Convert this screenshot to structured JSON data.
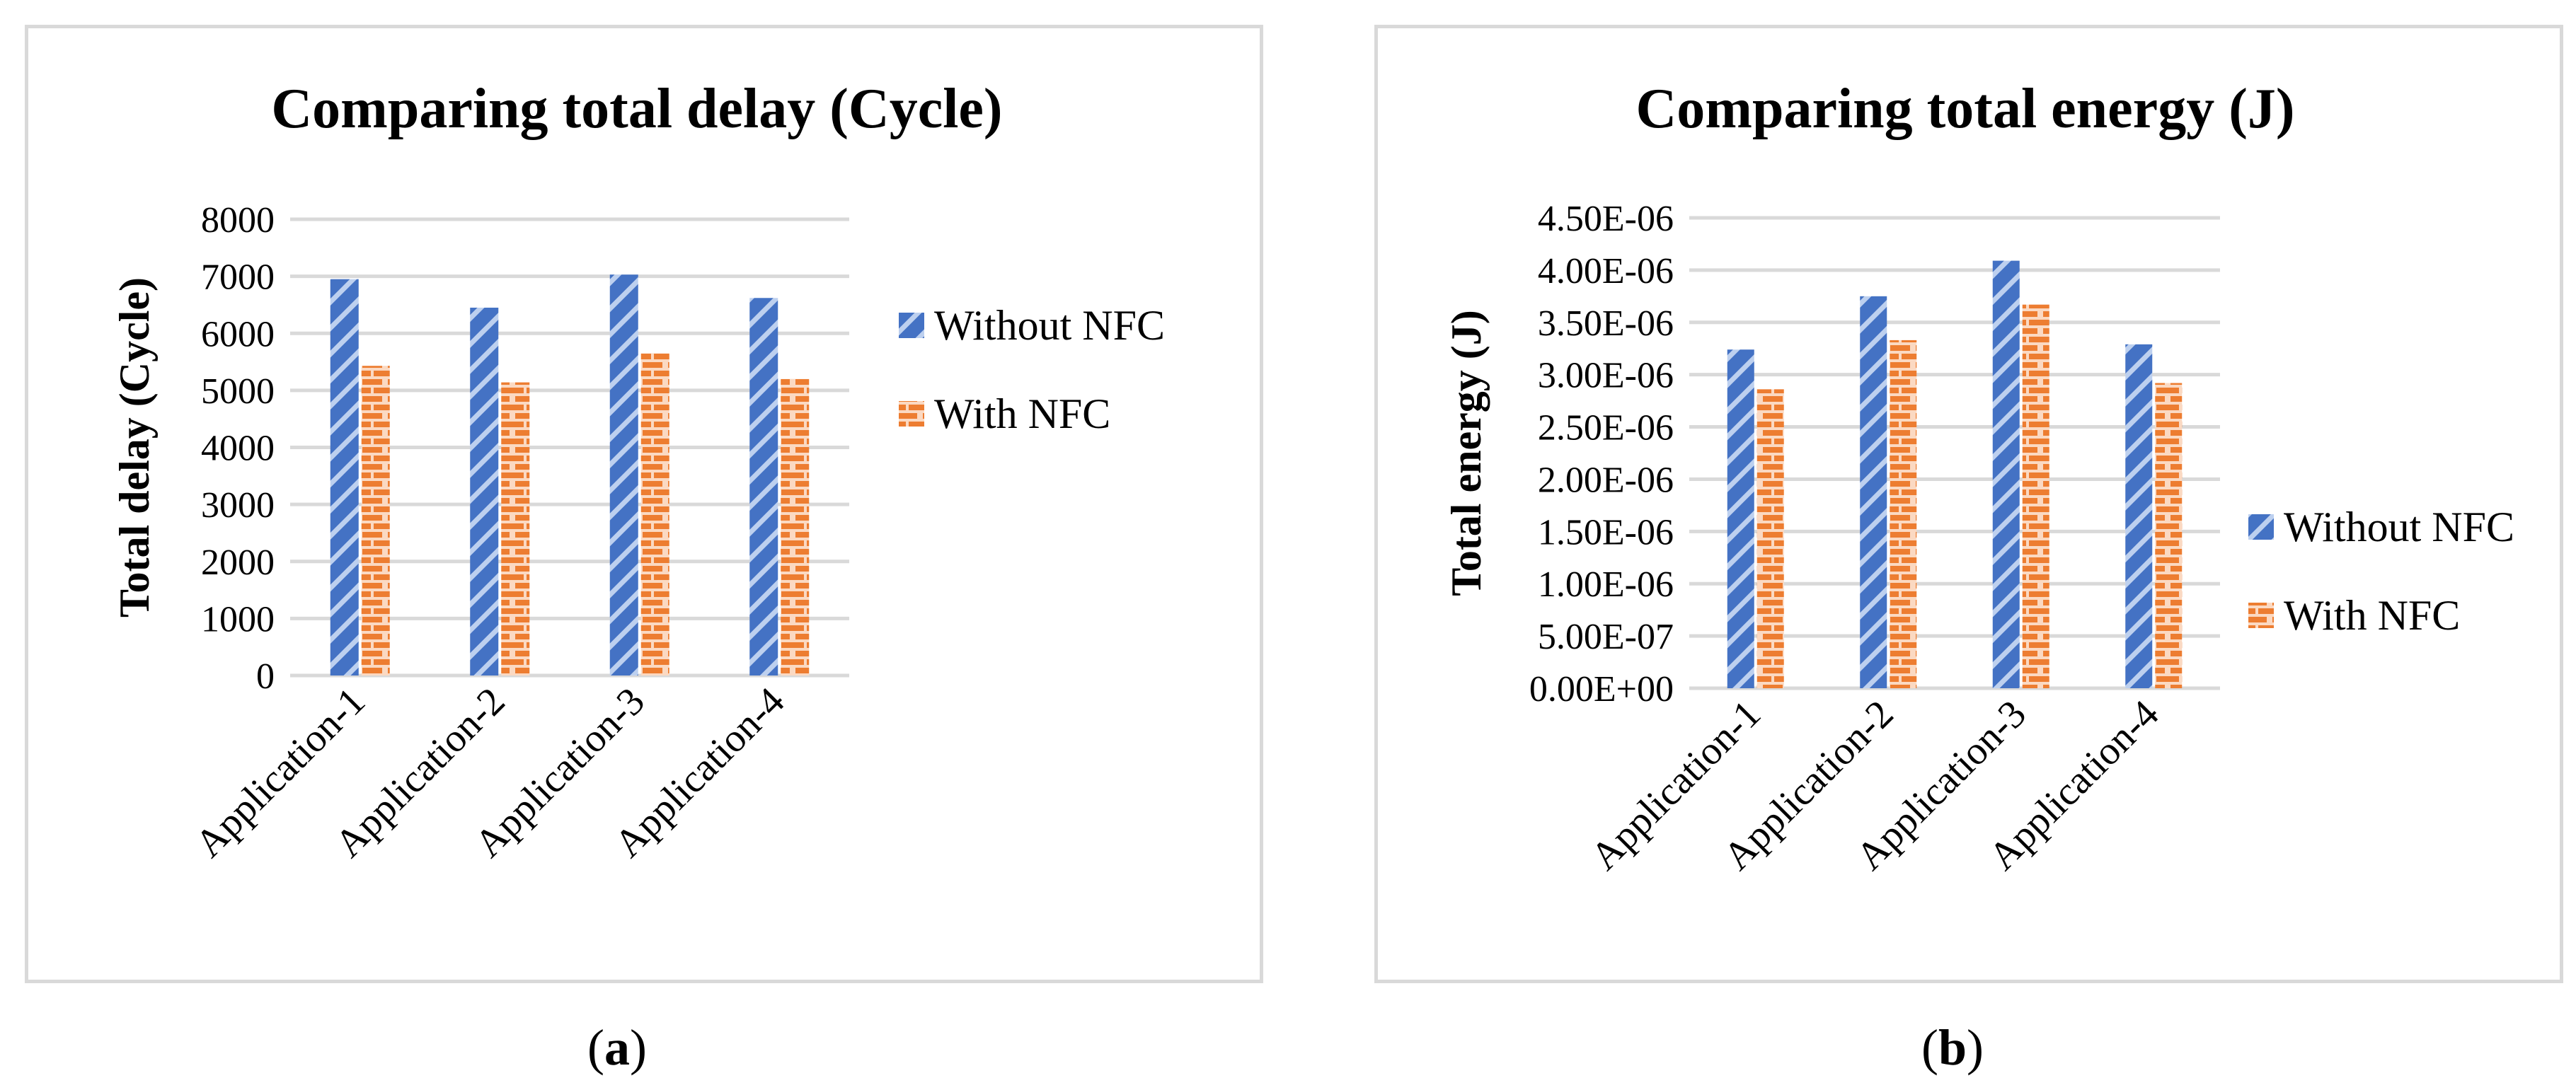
{
  "colors": {
    "without": "#4472c4",
    "with": "#ed7d31",
    "grid": "#d9d9d9"
  },
  "panels": {
    "a": "a",
    "b": "b"
  },
  "chart_data": [
    {
      "type": "bar",
      "title": "Comparing total delay (Cycle)",
      "xlabel": "",
      "ylabel": "Total delay (Cycle)",
      "categories": [
        "Application-1",
        "Application-2",
        "Application-3",
        "Application-4"
      ],
      "series": [
        {
          "name": "Without NFC",
          "values": [
            6950,
            6450,
            7030,
            6620
          ]
        },
        {
          "name": "With NFC",
          "values": [
            5430,
            5140,
            5650,
            5200
          ]
        }
      ],
      "ylim": [
        0,
        8000
      ],
      "yticks": [
        "0",
        "1000",
        "2000",
        "3000",
        "4000",
        "5000",
        "6000",
        "7000",
        "8000"
      ],
      "grid": true,
      "legend": "right"
    },
    {
      "type": "bar",
      "title": "Comparing total energy (J)",
      "xlabel": "",
      "ylabel": "Total energy (J)",
      "categories": [
        "Application-1",
        "Application-2",
        "Application-3",
        "Application-4"
      ],
      "series": [
        {
          "name": "Without NFC",
          "values": [
            3.24e-06,
            3.75e-06,
            4.09e-06,
            3.29e-06
          ]
        },
        {
          "name": "With NFC",
          "values": [
            2.86e-06,
            3.33e-06,
            3.67e-06,
            2.92e-06
          ]
        }
      ],
      "ylim": [
        0,
        4.5e-06
      ],
      "yticks": [
        "0.00E+00",
        "5.00E-07",
        "1.00E-06",
        "1.50E-06",
        "2.00E-06",
        "2.50E-06",
        "3.00E-06",
        "3.50E-06",
        "4.00E-06",
        "4.50E-06"
      ],
      "grid": true,
      "legend": "right"
    }
  ]
}
